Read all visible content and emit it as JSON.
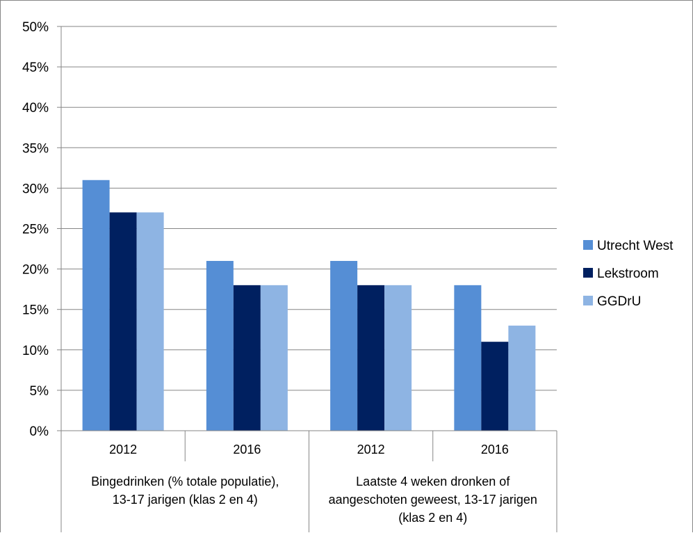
{
  "chart_data": {
    "type": "bar",
    "y_axis": {
      "min": 0,
      "max": 50,
      "step": 5,
      "tick_labels": [
        "0%",
        "5%",
        "10%",
        "15%",
        "20%",
        "25%",
        "30%",
        "35%",
        "40%",
        "45%",
        "50%"
      ],
      "grid": true
    },
    "groups": [
      {
        "label_lines": [
          "Bingedrinken (% totale populatie),",
          "13-17 jarigen (klas 2 en 4)"
        ],
        "categories": [
          "2012",
          "2016"
        ]
      },
      {
        "label_lines": [
          "Laatste 4 weken dronken of",
          "aangeschoten geweest, 13-17 jarigen",
          "(klas 2 en 4)"
        ],
        "categories": [
          "2012",
          "2016"
        ]
      }
    ],
    "series": [
      {
        "name": "Utrecht West",
        "color": "#558ED5",
        "values": [
          31,
          21,
          21,
          18
        ]
      },
      {
        "name": "Lekstroom",
        "color": "#002060",
        "values": [
          27,
          18,
          18,
          11
        ]
      },
      {
        "name": "GGDrU",
        "color": "#8EB4E3",
        "values": [
          27,
          18,
          18,
          13
        ]
      }
    ],
    "legend_position": "right"
  }
}
